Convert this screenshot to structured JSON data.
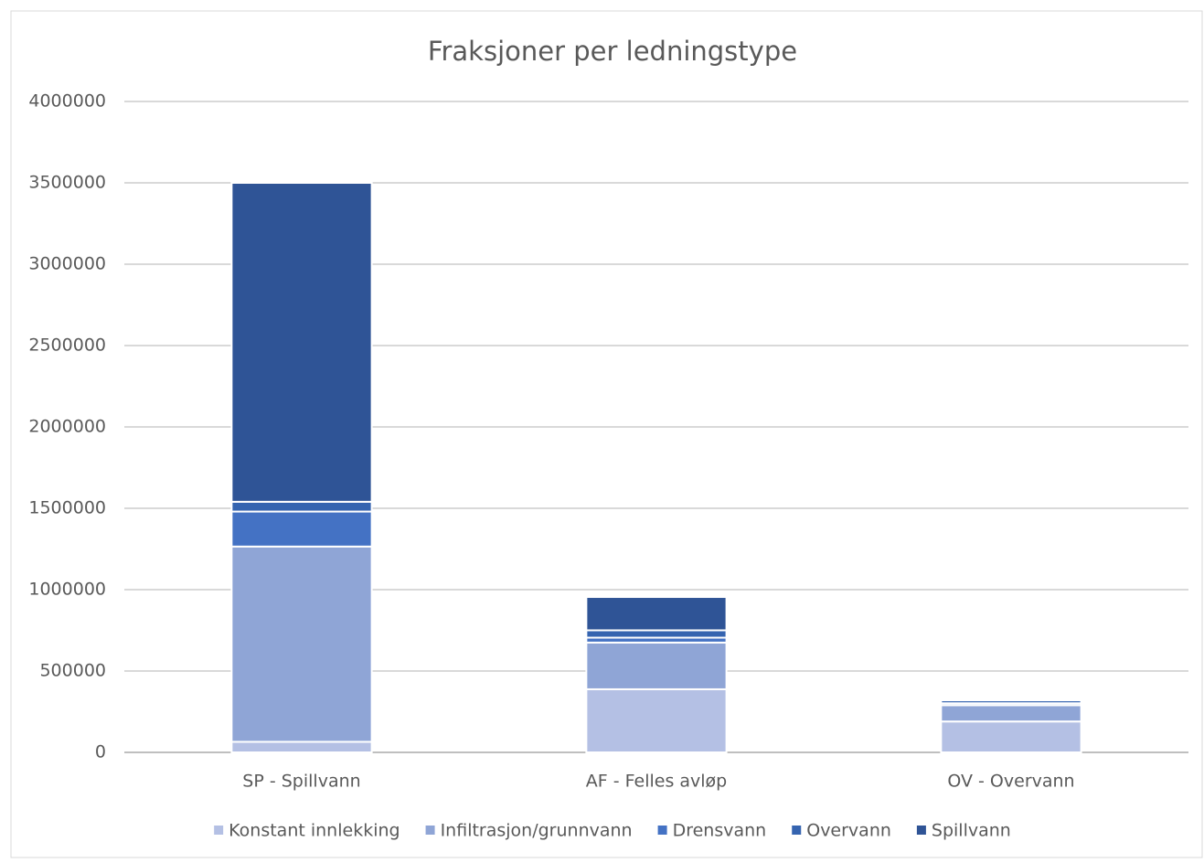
{
  "chart_data": {
    "type": "stacked_bar",
    "title": "Fraksjoner per ledningstype",
    "categories": [
      "SP - Spillvann",
      "AF - Felles avløp",
      "OV - Overvann"
    ],
    "series": [
      {
        "name": "Konstant innlekking",
        "color": "#b4c0e4",
        "values": [
          65000,
          388000,
          190000
        ]
      },
      {
        "name": "Infiltrasjon/grunnvann",
        "color": "#8fa5d6",
        "values": [
          1200000,
          287000,
          100000
        ]
      },
      {
        "name": "Drensvann",
        "color": "#4472c4",
        "values": [
          215000,
          30000,
          12000
        ]
      },
      {
        "name": "Overvann",
        "color": "#3564b0",
        "values": [
          60000,
          45000,
          18000
        ]
      },
      {
        "name": "Spillvann",
        "color": "#2f5496",
        "values": [
          1960000,
          205000,
          6000
        ]
      }
    ],
    "ylim": [
      0,
      4000000
    ],
    "yticks": [
      0,
      500000,
      1000000,
      1500000,
      2000000,
      2500000,
      3000000,
      3500000,
      4000000
    ],
    "grid": true,
    "legend": "bottom"
  }
}
